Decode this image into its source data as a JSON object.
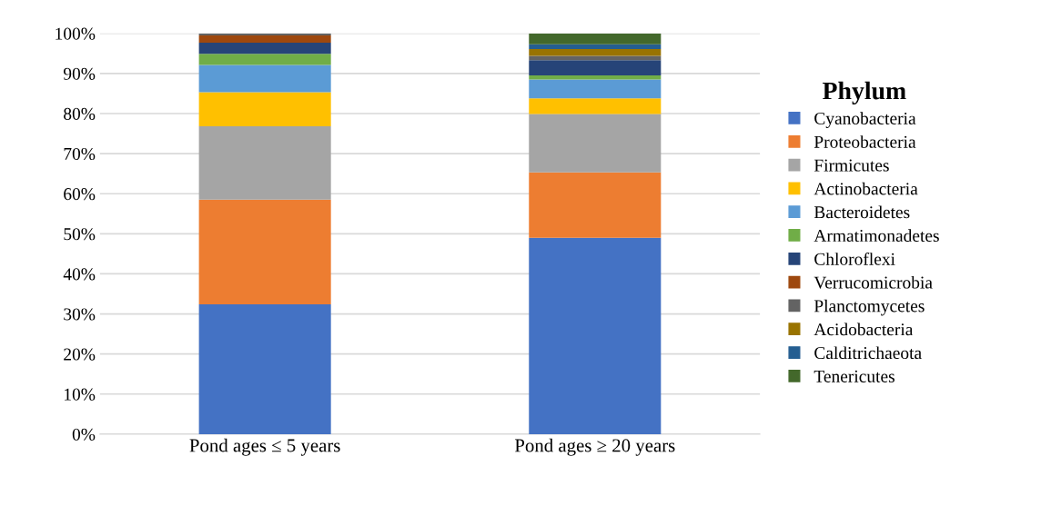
{
  "chart_data": {
    "type": "bar",
    "stacked": true,
    "legend_title": "Phylum",
    "legend": "right",
    "categories": [
      "Pond ages ≤ 5 years",
      "Pond ages ≥ 20 years"
    ],
    "series": [
      {
        "name": "Cyanobacteria",
        "color": "#4472c4",
        "values": [
          32.4,
          49.0
        ]
      },
      {
        "name": "Proteobacteria",
        "color": "#ed7d31",
        "values": [
          26.1,
          16.3
        ]
      },
      {
        "name": "Firmicutes",
        "color": "#a5a5a5",
        "values": [
          18.3,
          14.6
        ]
      },
      {
        "name": "Actinobacteria",
        "color": "#ffc000",
        "values": [
          8.5,
          3.9
        ]
      },
      {
        "name": "Bacteroidetes",
        "color": "#5b9bd5",
        "values": [
          6.8,
          4.7
        ]
      },
      {
        "name": "Armatimonadetes",
        "color": "#70ad47",
        "values": [
          2.8,
          1.0
        ]
      },
      {
        "name": "Chloroflexi",
        "color": "#264478",
        "values": [
          2.8,
          3.8
        ]
      },
      {
        "name": "Verrucomicrobia",
        "color": "#9e480e",
        "values": [
          1.8,
          0
        ]
      },
      {
        "name": "Planctomycetes",
        "color": "#636363",
        "values": [
          0.5,
          1.1
        ]
      },
      {
        "name": "Acidobacteria",
        "color": "#997300",
        "values": [
          0,
          1.7
        ]
      },
      {
        "name": "Calditrichaeota",
        "color": "#255e91",
        "values": [
          0,
          1.2
        ]
      },
      {
        "name": "Tenericutes",
        "color": "#43682b",
        "values": [
          0,
          2.7
        ]
      }
    ],
    "ylim": [
      0,
      100
    ],
    "yticks": [
      {
        "value": 0,
        "label": "0%"
      },
      {
        "value": 10,
        "label": "10%"
      },
      {
        "value": 20,
        "label": "20%"
      },
      {
        "value": 30,
        "label": "30%"
      },
      {
        "value": 40,
        "label": "40%"
      },
      {
        "value": 50,
        "label": "50%"
      },
      {
        "value": 60,
        "label": "60%"
      },
      {
        "value": 70,
        "label": "70%"
      },
      {
        "value": 80,
        "label": "80%"
      },
      {
        "value": 90,
        "label": "90%"
      },
      {
        "value": 100,
        "label": "100%"
      }
    ],
    "grid": "y"
  }
}
